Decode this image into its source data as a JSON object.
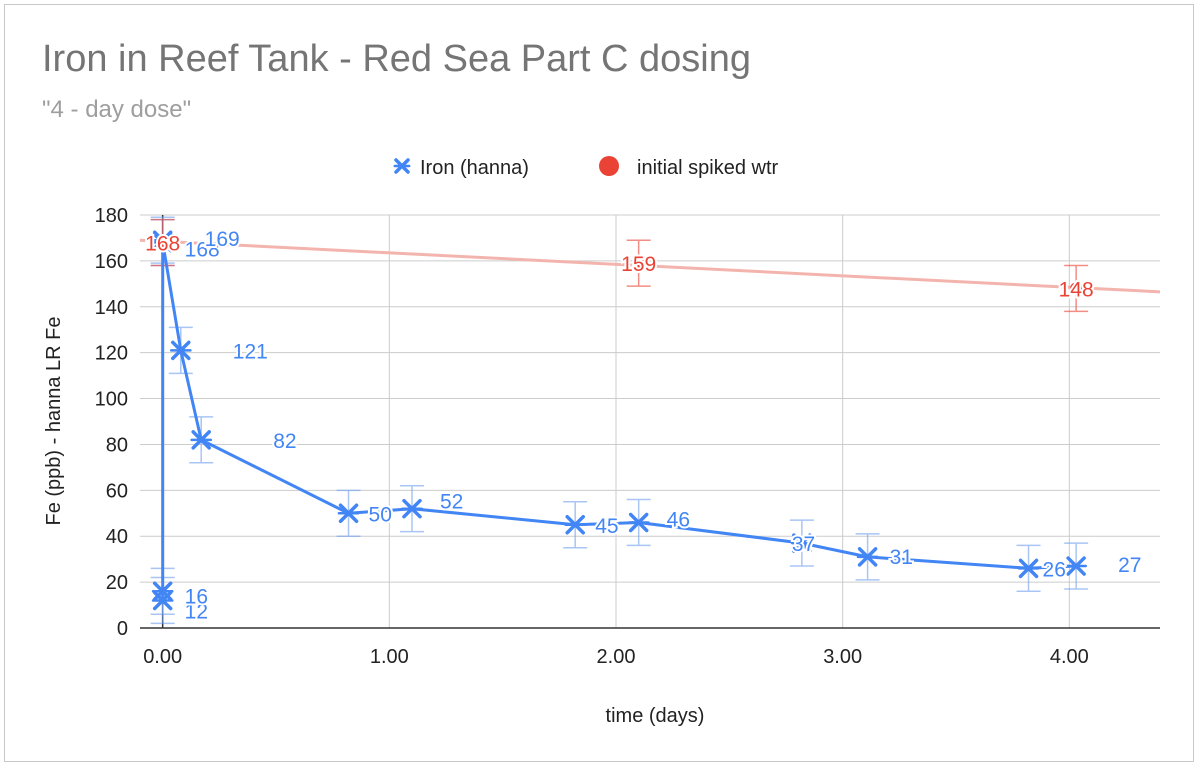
{
  "chart_data": {
    "type": "line",
    "title": "Iron in Reef Tank - Red Sea Part C dosing",
    "subtitle": "\"4 - day dose\"",
    "xlabel": "time (days)",
    "ylabel": "Fe (ppb) - hanna LR Fe",
    "xlim": [
      -0.1,
      4.4
    ],
    "ylim": [
      0,
      180
    ],
    "x_ticks": [
      0,
      1,
      2,
      3,
      4
    ],
    "x_tick_labels": [
      "0.00",
      "1.00",
      "2.00",
      "3.00",
      "4.00"
    ],
    "y_ticks": [
      0,
      20,
      40,
      60,
      80,
      100,
      120,
      140,
      160,
      180
    ],
    "y_tick_labels": [
      "0",
      "20",
      "40",
      "60",
      "80",
      "100",
      "120",
      "140",
      "160",
      "180"
    ],
    "grid": true,
    "legend_position": "top-center",
    "series": [
      {
        "name": "Iron (hanna)",
        "color": "#4285f4",
        "marker": "x",
        "error_bar": 10,
        "points": [
          {
            "x": 0.0,
            "y": 12,
            "label": "12"
          },
          {
            "x": 0.0,
            "y": 16,
            "label": "16"
          },
          {
            "x": 0.0,
            "y": 168,
            "label": "168"
          },
          {
            "x": 0.0,
            "y": 169,
            "label": "169"
          },
          {
            "x": 0.08,
            "y": 121,
            "label": "121"
          },
          {
            "x": 0.17,
            "y": 82,
            "label": "82"
          },
          {
            "x": 0.82,
            "y": 50,
            "label": "50"
          },
          {
            "x": 1.1,
            "y": 52,
            "label": "52"
          },
          {
            "x": 1.82,
            "y": 45,
            "label": "45"
          },
          {
            "x": 2.1,
            "y": 46,
            "label": "46"
          },
          {
            "x": 2.82,
            "y": 37,
            "label": "37"
          },
          {
            "x": 3.11,
            "y": 31,
            "label": "31"
          },
          {
            "x": 3.82,
            "y": 26,
            "label": "26"
          },
          {
            "x": 4.03,
            "y": 27,
            "label": "27"
          }
        ]
      },
      {
        "name": "initial spiked wtr",
        "color": "#ea4335",
        "marker": "circle",
        "error_bar": 10,
        "trendline": {
          "type": "linear",
          "from": [
            -0.1,
            169
          ],
          "to": [
            4.4,
            146.5
          ],
          "color": "#f4b4ae"
        },
        "points": [
          {
            "x": 0.0,
            "y": 168,
            "label": "168"
          },
          {
            "x": 2.1,
            "y": 159,
            "label": "159"
          },
          {
            "x": 4.03,
            "y": 148,
            "label": "148"
          }
        ]
      }
    ]
  }
}
